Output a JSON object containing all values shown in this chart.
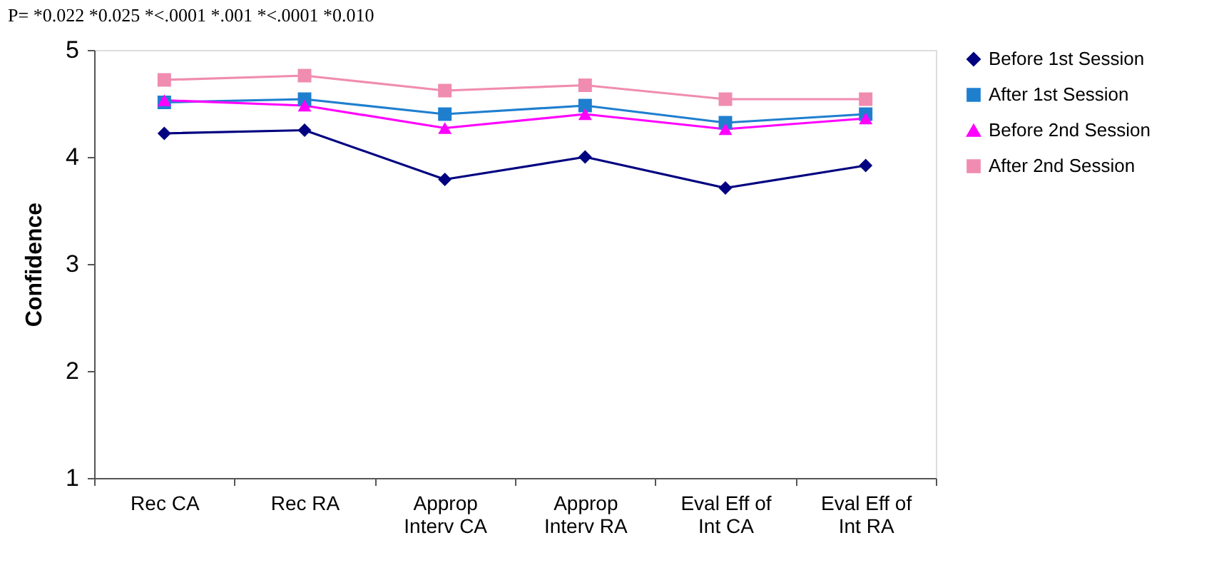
{
  "chart_data": {
    "type": "line",
    "title": "P= *0.022 *0.025 *<.0001 *.001 *<.0001 *0.010",
    "ylabel": "Confidence",
    "categories": [
      "Rec CA",
      "Rec RA",
      "Approp Interv CA",
      "Approp Interv RA",
      "Eval Eff of Int CA",
      "Eval Eff of Int RA"
    ],
    "ylim": [
      1,
      5
    ],
    "yticks": [
      1,
      2,
      3,
      4,
      5
    ],
    "grid": false,
    "legend": "right",
    "series": [
      {
        "name": "Before 1st Session",
        "color": "#000080",
        "marker": "diamond",
        "values": [
          4.22,
          4.25,
          3.79,
          4.0,
          3.71,
          3.92
        ]
      },
      {
        "name": "After 1st Session",
        "color": "#1f7fcf",
        "marker": "square",
        "values": [
          4.51,
          4.54,
          4.4,
          4.48,
          4.32,
          4.4
        ]
      },
      {
        "name": "Before 2nd Session",
        "color": "#ff00ff",
        "marker": "triangle",
        "values": [
          4.53,
          4.48,
          4.27,
          4.4,
          4.26,
          4.36
        ]
      },
      {
        "name": "After 2nd Session",
        "color": "#f08cb0",
        "marker": "square",
        "values": [
          4.72,
          4.76,
          4.62,
          4.67,
          4.54,
          4.54
        ]
      }
    ]
  }
}
